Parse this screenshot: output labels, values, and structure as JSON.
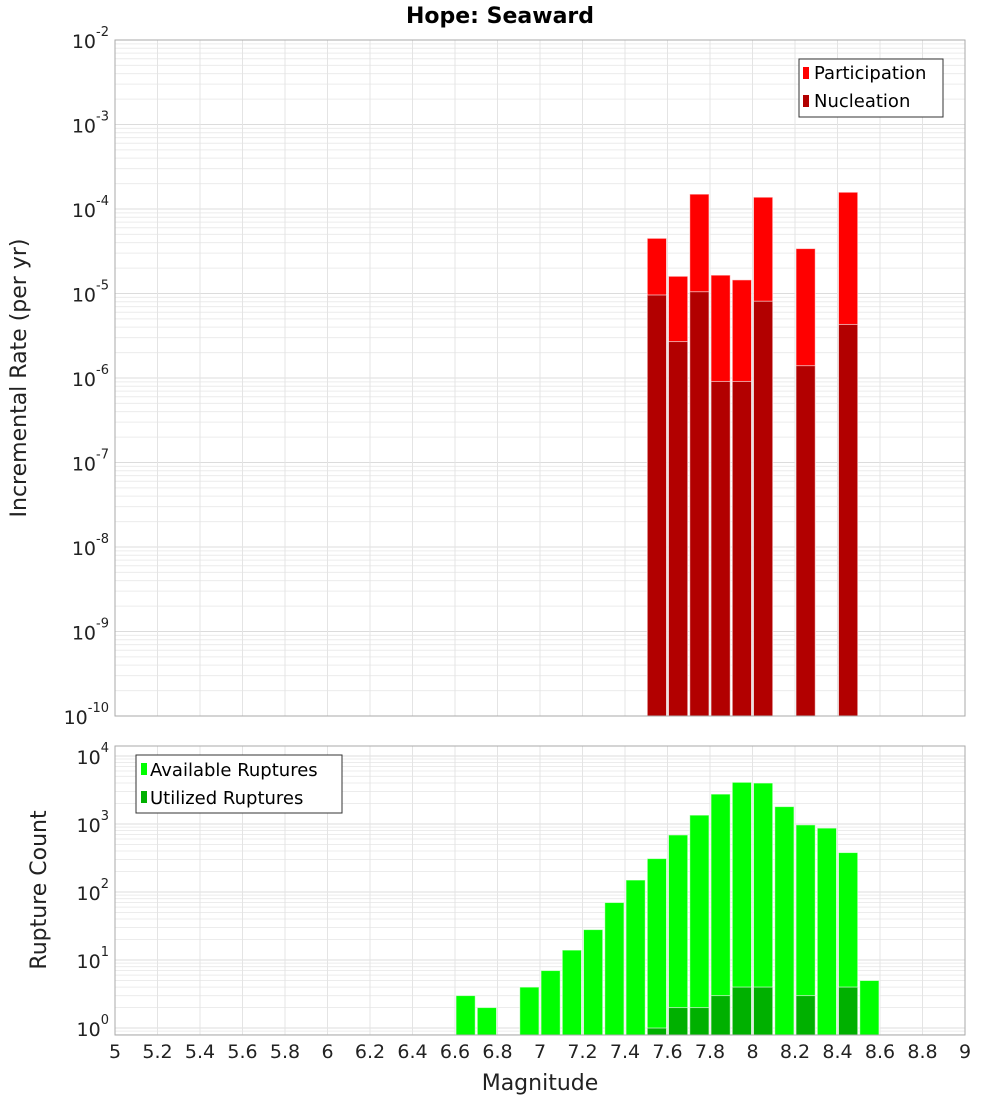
{
  "chart_data": [
    {
      "type": "bar",
      "title": "Hope: Seaward",
      "xlabel": "Magnitude",
      "ylabel": "Incremental Rate (per yr)",
      "yscale": "log",
      "ylim": [
        1e-10,
        0.01
      ],
      "xlim": [
        5,
        9
      ],
      "bin_width": 0.1,
      "legend_position": "top-right",
      "grid": true,
      "x": [
        7.5,
        7.6,
        7.7,
        7.8,
        7.9,
        8.0,
        8.2,
        8.4
      ],
      "series": [
        {
          "name": "Participation",
          "color": "#ff0000",
          "values": [
            4.5e-05,
            1.6e-05,
            0.00015,
            1.65e-05,
            1.45e-05,
            0.000138,
            3.4e-05,
            0.000158
          ]
        },
        {
          "name": "Nucleation",
          "color": "#b20000",
          "values": [
            9.6e-06,
            2.7e-06,
            1.05e-05,
            9.1e-07,
            9.1e-07,
            8.1e-06,
            1.4e-06,
            4.3e-06
          ]
        }
      ]
    },
    {
      "type": "bar",
      "xlabel": "Magnitude",
      "ylabel": "Rupture Count",
      "yscale": "log",
      "ylim": [
        0.79,
        14000
      ],
      "xlim": [
        5,
        9
      ],
      "bin_width": 0.1,
      "legend_position": "top-left",
      "grid": true,
      "series": [
        {
          "name": "Available Ruptures",
          "color": "#00ff00",
          "x": [
            6.6,
            6.7,
            6.9,
            7.0,
            7.1,
            7.2,
            7.3,
            7.4,
            7.5,
            7.6,
            7.7,
            7.8,
            7.9,
            8.0,
            8.1,
            8.2,
            8.3,
            8.4,
            8.5
          ],
          "values": [
            3,
            2,
            4,
            7,
            14,
            28,
            70,
            150,
            310,
            690,
            1350,
            2750,
            4100,
            4000,
            1800,
            970,
            870,
            380,
            5
          ]
        },
        {
          "name": "Utilized Ruptures",
          "color": "#00b000",
          "x": [
            7.5,
            7.6,
            7.7,
            7.8,
            7.9,
            8.0,
            8.2,
            8.4
          ],
          "values": [
            1,
            2,
            2,
            3,
            4,
            4,
            3,
            4
          ]
        }
      ]
    }
  ],
  "x_ticks": [
    "5",
    "5.2",
    "5.4",
    "5.6",
    "5.8",
    "6",
    "6.2",
    "6.4",
    "6.6",
    "6.8",
    "7",
    "7.2",
    "7.4",
    "7.6",
    "7.8",
    "8",
    "8.2",
    "8.4",
    "8.6",
    "8.8",
    "9"
  ],
  "top_y_ticks": [
    -10,
    -9,
    -8,
    -7,
    -6,
    -5,
    -4,
    -3,
    -2
  ],
  "bottom_y_ticks": [
    0,
    1,
    2,
    3,
    4
  ],
  "tick_base": "10"
}
